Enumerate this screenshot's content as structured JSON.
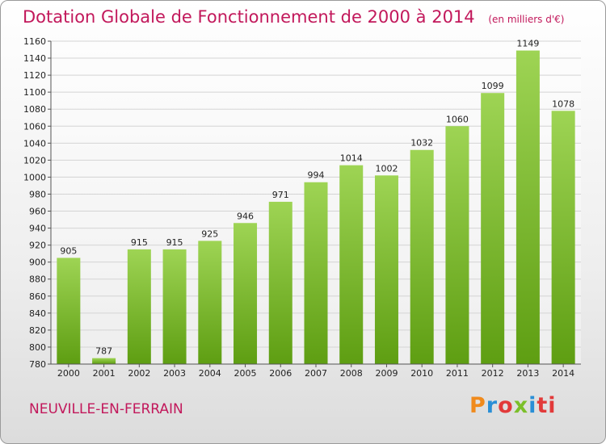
{
  "header": {
    "title": "Dotation Globale de Fonctionnement de 2000 à 2014",
    "subtitle": "(en milliers d'€)"
  },
  "footer": {
    "place": "NEUVILLE-EN-FERRAIN",
    "logo_letters": [
      "P",
      "r",
      "o",
      "x",
      "i",
      "ti"
    ]
  },
  "colors": {
    "bar_light": "#9ed454",
    "bar_dark": "#5e9e12",
    "accent": "#c2185b"
  },
  "chart_data": {
    "type": "bar",
    "title": "Dotation Globale de Fonctionnement de 2000 à 2014",
    "subtitle": "(en milliers d'€)",
    "categories": [
      "2000",
      "2001",
      "2002",
      "2003",
      "2004",
      "2005",
      "2006",
      "2007",
      "2008",
      "2009",
      "2010",
      "2011",
      "2012",
      "2013",
      "2014"
    ],
    "values": [
      905,
      787,
      915,
      915,
      925,
      946,
      971,
      994,
      1014,
      1002,
      1032,
      1060,
      1099,
      1149,
      1078
    ],
    "ylim": [
      780,
      1160
    ],
    "yticks": [
      780,
      800,
      820,
      840,
      860,
      880,
      900,
      920,
      940,
      960,
      980,
      1000,
      1020,
      1040,
      1060,
      1080,
      1100,
      1120,
      1140,
      1160
    ],
    "grid": true,
    "legend": "none"
  }
}
